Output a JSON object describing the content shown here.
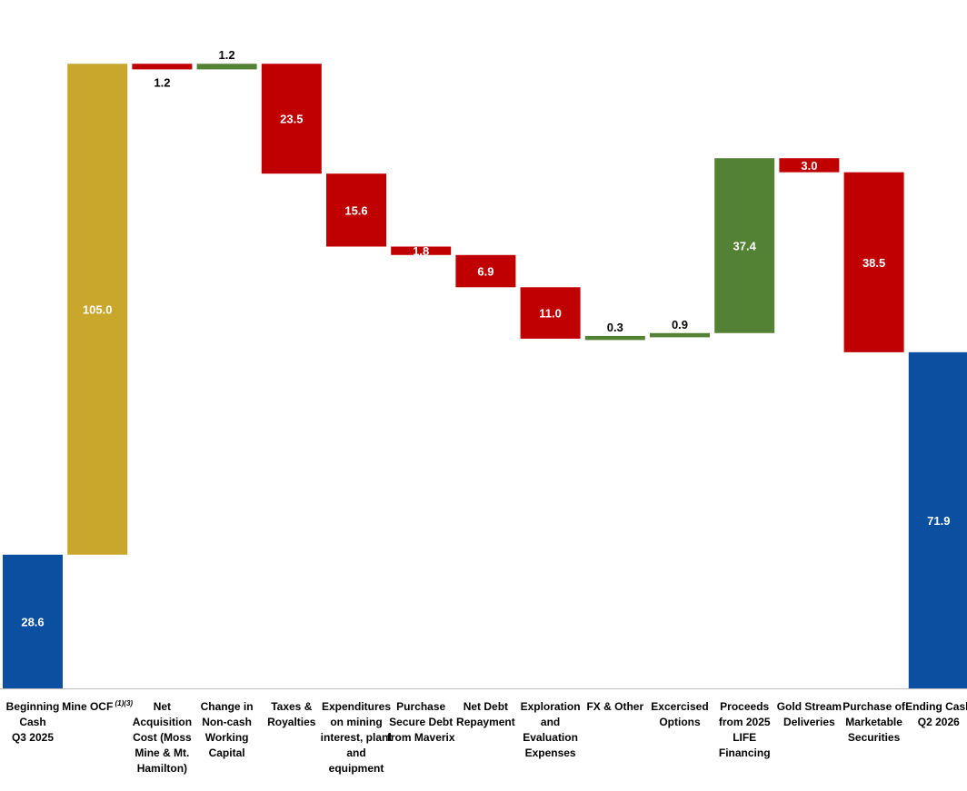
{
  "chart_data": {
    "type": "bar",
    "subtype": "waterfall",
    "title": "",
    "xlabel": "",
    "ylabel": "",
    "ylim": [
      0,
      140
    ],
    "grid": false,
    "legend": "none",
    "colors": {
      "total": "#0a4fa0",
      "ocf": "#c9a62c",
      "increase": "#548235",
      "decrease": "#c00000"
    },
    "categories": [
      [
        "Beginning",
        "Cash",
        "Q3 2025"
      ],
      [
        "Mine OCF"
      ],
      [
        "Net",
        "Acquisition",
        "Cost (Moss",
        "Mine & Mt.",
        "Hamilton)"
      ],
      [
        "Change in",
        "Non-cash",
        "Working",
        "Capital"
      ],
      [
        "Taxes &",
        "Royalties"
      ],
      [
        "Expenditures",
        "on mining",
        "interest, plant",
        "and",
        "equipment"
      ],
      [
        "Purchase",
        "Secure Debt",
        "from Maverix"
      ],
      [
        "Net Debt",
        "Repayment"
      ],
      [
        "Exploration",
        "and",
        "Evaluation",
        "Expenses"
      ],
      [
        "FX & Other"
      ],
      [
        "Excercised",
        "Options"
      ],
      [
        "Proceeds",
        "from 2025",
        "LIFE",
        "Financing"
      ],
      [
        "Gold Stream",
        "Deliveries"
      ],
      [
        "Purchase of",
        "Marketable",
        "Securities"
      ],
      [
        "Ending Cash",
        "Q2 2026"
      ]
    ],
    "footnote_marker": "(1)(3)",
    "bars": [
      {
        "kind": "total",
        "value": 28.6,
        "label": "28.6"
      },
      {
        "kind": "ocf",
        "value": 105.0,
        "label": "105.0"
      },
      {
        "kind": "decrease",
        "value": 1.2,
        "label": "1.2"
      },
      {
        "kind": "increase",
        "value": 1.2,
        "label": "1.2"
      },
      {
        "kind": "decrease",
        "value": 23.5,
        "label": "23.5"
      },
      {
        "kind": "decrease",
        "value": 15.6,
        "label": "15.6"
      },
      {
        "kind": "decrease",
        "value": 1.8,
        "label": "1.8"
      },
      {
        "kind": "decrease",
        "value": 6.9,
        "label": "6.9"
      },
      {
        "kind": "decrease",
        "value": 11.0,
        "label": "11.0"
      },
      {
        "kind": "increase",
        "value": 0.3,
        "label": "0.3"
      },
      {
        "kind": "increase",
        "value": 0.9,
        "label": "0.9"
      },
      {
        "kind": "increase",
        "value": 37.4,
        "label": "37.4"
      },
      {
        "kind": "decrease",
        "value": 3.0,
        "label": "3.0"
      },
      {
        "kind": "decrease",
        "value": 38.5,
        "label": "38.5"
      },
      {
        "kind": "total",
        "value": 71.9,
        "label": "71.9"
      }
    ]
  }
}
